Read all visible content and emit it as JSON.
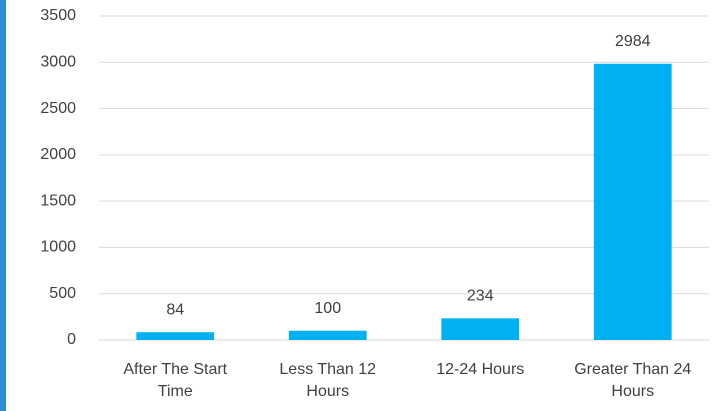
{
  "chart_data": {
    "type": "bar",
    "categories": [
      "After The Start Time",
      "Less Than 12 Hours",
      "12-24 Hours",
      "Greater Than 24 Hours"
    ],
    "values": [
      84,
      100,
      234,
      2984
    ],
    "color": "#00b0f0",
    "ylim": [
      0,
      3500
    ],
    "yticks": [
      0,
      500,
      1000,
      1500,
      2000,
      2500,
      3000,
      3500
    ],
    "grid": true
  }
}
